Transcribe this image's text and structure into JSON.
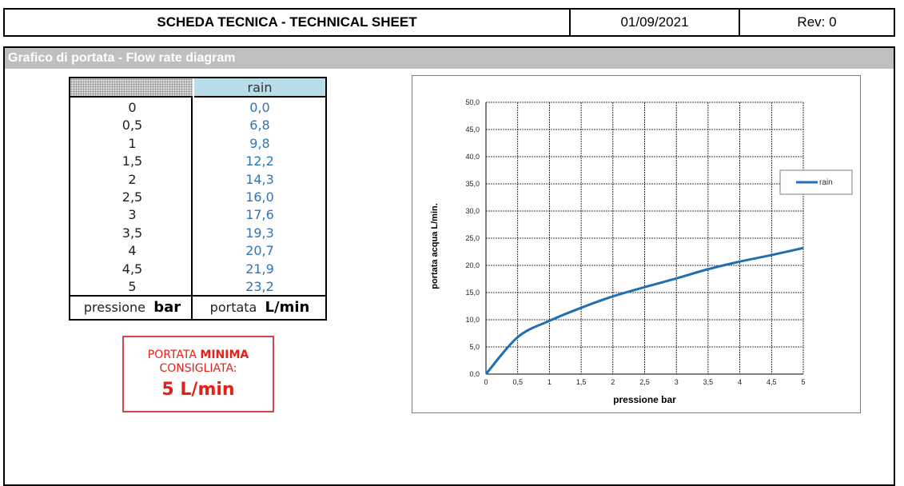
{
  "header": {
    "title": "SCHEDA TECNICA - TECHNICAL SHEET",
    "date": "01/09/2021",
    "rev": "Rev: 0"
  },
  "section": {
    "title": "Grafico di portata - Flow rate diagram"
  },
  "table": {
    "series_header": "rain",
    "rows": [
      {
        "pressure": "0",
        "flow": "0,0"
      },
      {
        "pressure": "0,5",
        "flow": "6,8"
      },
      {
        "pressure": "1",
        "flow": "9,8"
      },
      {
        "pressure": "1,5",
        "flow": "12,2"
      },
      {
        "pressure": "2",
        "flow": "14,3"
      },
      {
        "pressure": "2,5",
        "flow": "16,0"
      },
      {
        "pressure": "3",
        "flow": "17,6"
      },
      {
        "pressure": "3,5",
        "flow": "19,3"
      },
      {
        "pressure": "4",
        "flow": "20,7"
      },
      {
        "pressure": "4,5",
        "flow": "21,9"
      },
      {
        "pressure": "5",
        "flow": "23,2"
      }
    ],
    "footer_left_label": "pressione",
    "footer_left_unit": "bar",
    "footer_right_label": "portata",
    "footer_right_unit": "L/min"
  },
  "min_flow": {
    "line1_prefix": "PORTATA",
    "line1_bold": "MINIMA",
    "line2": "CONSIGLIATA:",
    "value": "5 L/min"
  },
  "chart_data": {
    "type": "line",
    "xlabel": "pressione bar",
    "ylabel": "portata acqua  L/min.",
    "x": [
      0,
      0.5,
      1,
      1.5,
      2,
      2.5,
      3,
      3.5,
      4,
      4.5,
      5
    ],
    "series": [
      {
        "name": "rain",
        "values": [
          0.0,
          6.8,
          9.8,
          12.2,
          14.3,
          16.0,
          17.6,
          19.3,
          20.7,
          21.9,
          23.2
        ],
        "color": "#1f6fb5"
      }
    ],
    "xlim": [
      0,
      5
    ],
    "ylim": [
      0,
      50
    ],
    "xticks": [
      "0",
      "0,5",
      "1",
      "1,5",
      "2",
      "2,5",
      "3",
      "3,5",
      "4",
      "4,5",
      "5"
    ],
    "yticks": [
      "0,0",
      "5,0",
      "10,0",
      "15,0",
      "20,0",
      "25,0",
      "30,0",
      "35,0",
      "40,0",
      "45,0",
      "50,0"
    ],
    "grid": true,
    "legend_position": "right"
  }
}
